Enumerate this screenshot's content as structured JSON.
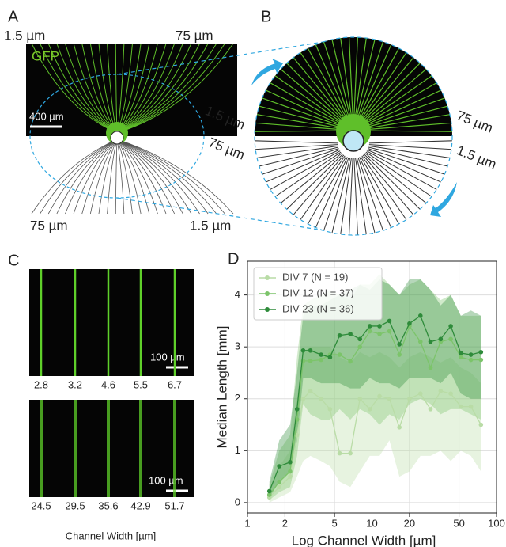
{
  "panel_a": {
    "label": "A",
    "top_left": "1.5 µm",
    "top_right": "75 µm",
    "stain": "GFP",
    "scale_bar": "400 µm",
    "bottom_left": "75 µm",
    "bottom_right": "1.5 µm"
  },
  "panel_b": {
    "label": "B",
    "left_top": "1.5 µm",
    "right_top": "75 µm",
    "left_bottom": "75 µm",
    "right_bottom": "1.5 µm"
  },
  "panel_c": {
    "label": "C",
    "top_scale_bar": "100 µm",
    "top_widths": [
      2.8,
      3.2,
      4.6,
      5.5,
      6.7
    ],
    "bottom_scale_bar": "100 µm",
    "bottom_widths": [
      24.5,
      29.5,
      35.6,
      42.9,
      51.7
    ],
    "x_label": "Channel Width [µm]"
  },
  "panel_d": {
    "label": "D"
  },
  "chart_data": {
    "type": "line",
    "x_label": "Log Channel Width [µm]",
    "y_label": "Median Length [mm]",
    "x": [
      1.5,
      1.8,
      2.2,
      2.5,
      2.8,
      3.2,
      3.9,
      4.6,
      5.5,
      6.7,
      8.0,
      9.6,
      11.5,
      13.8,
      16.6,
      20.0,
      24.5,
      29.5,
      35.6,
      42.9,
      51.7,
      62.3,
      75.0
    ],
    "xlim": [
      1,
      100
    ],
    "xticks": [
      1,
      2,
      5,
      10,
      20,
      50,
      100
    ],
    "x_log": true,
    "ylim": [
      -0.2,
      4.65
    ],
    "yticks": [
      0,
      1,
      2,
      3,
      4
    ],
    "grid": true,
    "legend": "upper-left",
    "series": [
      {
        "name": "DIV 7 (N = 19)",
        "color": "#b9dca6",
        "values": [
          0.1,
          0.3,
          0.5,
          1.3,
          2.0,
          2.15,
          2.0,
          1.8,
          0.95,
          0.95,
          2.0,
          1.8,
          2.05,
          2.0,
          1.45,
          2.0,
          2.1,
          1.8,
          2.15,
          2.1,
          1.85,
          1.85,
          1.5
        ],
        "lower": [
          0.0,
          0.1,
          0.2,
          0.5,
          0.8,
          0.9,
          0.8,
          0.7,
          0.4,
          0.3,
          0.6,
          0.9,
          0.9,
          1.2,
          0.5,
          0.6,
          0.9,
          0.9,
          1.0,
          0.8,
          1.0,
          0.9,
          0.6
        ],
        "upper": [
          0.2,
          0.7,
          1.0,
          2.0,
          2.9,
          3.0,
          3.0,
          3.0,
          2.8,
          2.7,
          2.9,
          2.8,
          2.9,
          2.8,
          2.6,
          2.8,
          2.9,
          2.8,
          2.7,
          2.8,
          2.6,
          2.5,
          2.3
        ]
      },
      {
        "name": "DIV 12 (N = 37)",
        "color": "#7cc46a",
        "values": [
          0.15,
          0.4,
          0.6,
          1.6,
          2.73,
          2.73,
          2.75,
          2.85,
          2.85,
          2.72,
          3.0,
          3.3,
          3.25,
          3.3,
          2.85,
          3.4,
          3.1,
          2.6,
          3.1,
          3.15,
          2.8,
          2.75,
          2.75
        ],
        "lower": [
          0.05,
          0.2,
          0.3,
          0.9,
          1.9,
          1.7,
          1.6,
          1.6,
          1.8,
          1.6,
          1.8,
          1.7,
          1.5,
          1.7,
          1.6,
          1.9,
          2.0,
          1.9,
          1.7,
          1.8,
          1.8,
          1.7,
          1.6
        ],
        "upper": [
          0.35,
          1.0,
          1.3,
          2.8,
          3.8,
          3.9,
          4.0,
          4.1,
          4.0,
          3.9,
          4.2,
          4.2,
          4.4,
          4.2,
          4.0,
          4.2,
          4.3,
          4.1,
          3.9,
          4.0,
          3.6,
          3.6,
          3.6
        ]
      },
      {
        "name": "DIV 23 (N = 36)",
        "color": "#2e8b3a",
        "values": [
          0.22,
          0.7,
          0.78,
          1.8,
          2.93,
          2.93,
          2.85,
          2.8,
          3.22,
          3.25,
          3.15,
          3.4,
          3.4,
          3.5,
          3.05,
          3.45,
          3.6,
          3.1,
          3.15,
          3.4,
          2.88,
          2.85,
          2.9
        ],
        "lower": [
          0.1,
          0.4,
          0.6,
          1.2,
          2.4,
          2.4,
          2.3,
          2.3,
          2.3,
          2.2,
          2.2,
          2.4,
          2.3,
          2.3,
          2.2,
          2.4,
          2.4,
          2.4,
          2.3,
          2.5,
          2.1,
          2.0,
          2.0
        ],
        "upper": [
          0.4,
          1.2,
          1.5,
          2.5,
          3.6,
          3.8,
          3.8,
          3.9,
          4.0,
          4.1,
          4.2,
          4.1,
          4.3,
          4.2,
          4.0,
          4.3,
          4.3,
          4.1,
          3.8,
          4.0,
          3.6,
          3.7,
          3.6
        ]
      }
    ]
  }
}
